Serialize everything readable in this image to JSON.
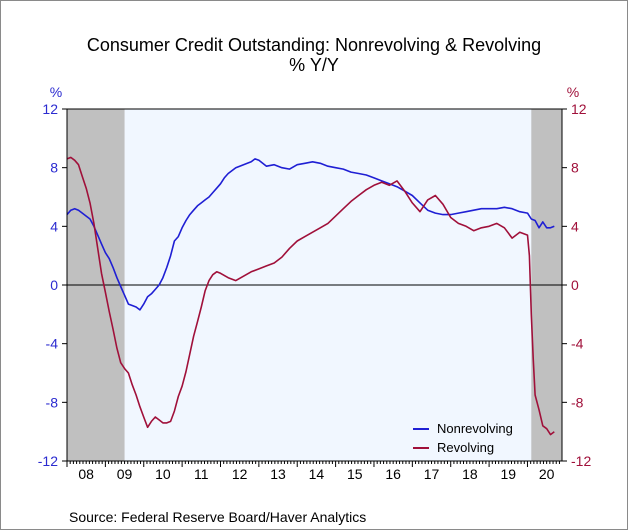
{
  "chart_data": {
    "type": "line",
    "title": "Consumer Credit Outstanding: Nonrevolving & Revolving",
    "subtitle": "% Y/Y",
    "ylabel_left": "%",
    "ylabel_right": "%",
    "ylim": [
      -12,
      12
    ],
    "yticks": [
      -12,
      -8,
      -4,
      0,
      4,
      8,
      12
    ],
    "ytick_labels": [
      "-12",
      "-8",
      "-4",
      "0",
      "4",
      "8",
      "12"
    ],
    "xlim": [
      2008.0,
      2020.9
    ],
    "xtick_labels": [
      "08",
      "09",
      "10",
      "11",
      "12",
      "13",
      "14",
      "15",
      "16",
      "17",
      "18",
      "19",
      "20"
    ],
    "recessions": [
      [
        2008.0,
        2009.5
      ],
      [
        2020.1,
        2020.9
      ]
    ],
    "grid": false,
    "zero_line": true,
    "legend_position": "bottom-right",
    "colors": {
      "nonrevolving": "#1f1fd4",
      "revolving": "#a0103a",
      "left_axis": "#2b2bd0",
      "right_axis": "#a0103a",
      "recession": "#c0c0c0",
      "plot_bg": "#f1f7ff"
    },
    "series": [
      {
        "name": "Nonrevolving",
        "x": [
          2008.0,
          2008.1,
          2008.2,
          2008.3,
          2008.4,
          2008.5,
          2008.6,
          2008.7,
          2008.8,
          2008.9,
          2009.0,
          2009.1,
          2009.2,
          2009.3,
          2009.4,
          2009.5,
          2009.6,
          2009.7,
          2009.8,
          2009.9,
          2010.0,
          2010.1,
          2010.2,
          2010.3,
          2010.4,
          2010.5,
          2010.6,
          2010.7,
          2010.8,
          2010.9,
          2011.0,
          2011.1,
          2011.2,
          2011.3,
          2011.4,
          2011.5,
          2011.6,
          2011.7,
          2011.8,
          2011.9,
          2012.0,
          2012.1,
          2012.2,
          2012.3,
          2012.4,
          2012.5,
          2012.6,
          2012.7,
          2012.8,
          2012.9,
          2013.0,
          2013.2,
          2013.4,
          2013.6,
          2013.8,
          2014.0,
          2014.2,
          2014.4,
          2014.6,
          2014.8,
          2015.0,
          2015.2,
          2015.4,
          2015.6,
          2015.8,
          2016.0,
          2016.2,
          2016.4,
          2016.6,
          2016.8,
          2017.0,
          2017.2,
          2017.4,
          2017.6,
          2017.8,
          2018.0,
          2018.2,
          2018.4,
          2018.6,
          2018.8,
          2019.0,
          2019.2,
          2019.4,
          2019.6,
          2019.8,
          2020.0,
          2020.1,
          2020.2,
          2020.3,
          2020.4,
          2020.5,
          2020.6,
          2020.7
        ],
        "values": [
          4.8,
          5.1,
          5.2,
          5.1,
          4.9,
          4.7,
          4.5,
          4.0,
          3.4,
          2.8,
          2.2,
          1.8,
          1.2,
          0.5,
          -0.1,
          -0.7,
          -1.3,
          -1.4,
          -1.5,
          -1.7,
          -1.3,
          -0.8,
          -0.6,
          -0.3,
          0.0,
          0.5,
          1.2,
          2.0,
          3.0,
          3.3,
          3.9,
          4.4,
          4.8,
          5.1,
          5.4,
          5.6,
          5.8,
          6.0,
          6.3,
          6.6,
          6.9,
          7.3,
          7.6,
          7.8,
          8.0,
          8.1,
          8.2,
          8.3,
          8.4,
          8.6,
          8.5,
          8.1,
          8.2,
          8.0,
          7.9,
          8.2,
          8.3,
          8.4,
          8.3,
          8.1,
          8.0,
          7.9,
          7.7,
          7.6,
          7.5,
          7.3,
          7.1,
          6.9,
          6.7,
          6.4,
          6.1,
          5.6,
          5.1,
          4.9,
          4.8,
          4.8,
          4.9,
          5.0,
          5.1,
          5.2,
          5.2,
          5.2,
          5.3,
          5.2,
          5.0,
          4.9,
          4.5,
          4.4,
          3.9,
          4.3,
          3.9,
          3.9,
          4.0
        ]
      },
      {
        "name": "Revolving",
        "x": [
          2008.0,
          2008.1,
          2008.2,
          2008.3,
          2008.4,
          2008.5,
          2008.6,
          2008.7,
          2008.8,
          2008.9,
          2009.0,
          2009.1,
          2009.2,
          2009.3,
          2009.4,
          2009.5,
          2009.6,
          2009.7,
          2009.8,
          2009.9,
          2010.0,
          2010.1,
          2010.2,
          2010.3,
          2010.4,
          2010.5,
          2010.6,
          2010.7,
          2010.8,
          2010.9,
          2011.0,
          2011.1,
          2011.2,
          2011.3,
          2011.4,
          2011.5,
          2011.6,
          2011.7,
          2011.8,
          2011.9,
          2012.0,
          2012.2,
          2012.4,
          2012.6,
          2012.8,
          2013.0,
          2013.2,
          2013.4,
          2013.6,
          2013.8,
          2014.0,
          2014.2,
          2014.4,
          2014.6,
          2014.8,
          2015.0,
          2015.2,
          2015.4,
          2015.6,
          2015.8,
          2016.0,
          2016.2,
          2016.4,
          2016.6,
          2016.8,
          2017.0,
          2017.2,
          2017.4,
          2017.6,
          2017.8,
          2018.0,
          2018.2,
          2018.4,
          2018.6,
          2018.8,
          2019.0,
          2019.2,
          2019.4,
          2019.6,
          2019.8,
          2020.0,
          2020.05,
          2020.1,
          2020.15,
          2020.2,
          2020.3,
          2020.4,
          2020.5,
          2020.6,
          2020.7
        ],
        "values": [
          8.6,
          8.7,
          8.5,
          8.2,
          7.4,
          6.6,
          5.6,
          4.2,
          2.5,
          0.8,
          -0.5,
          -1.8,
          -3.0,
          -4.3,
          -5.3,
          -5.7,
          -6.0,
          -6.8,
          -7.5,
          -8.3,
          -9.0,
          -9.7,
          -9.3,
          -9.0,
          -9.2,
          -9.4,
          -9.4,
          -9.3,
          -8.6,
          -7.6,
          -6.9,
          -5.9,
          -4.7,
          -3.5,
          -2.5,
          -1.5,
          -0.4,
          0.3,
          0.7,
          0.9,
          0.8,
          0.5,
          0.3,
          0.6,
          0.9,
          1.1,
          1.3,
          1.5,
          1.9,
          2.5,
          3.0,
          3.3,
          3.6,
          3.9,
          4.2,
          4.7,
          5.2,
          5.7,
          6.1,
          6.5,
          6.8,
          7.0,
          6.8,
          7.1,
          6.4,
          5.6,
          5.0,
          5.8,
          6.1,
          5.5,
          4.6,
          4.2,
          4.0,
          3.7,
          3.9,
          4.0,
          4.2,
          3.9,
          3.2,
          3.6,
          3.4,
          2.0,
          -2.0,
          -5.0,
          -7.5,
          -8.5,
          -9.6,
          -9.8,
          -10.2,
          -10.0
        ]
      }
    ],
    "source": "Source:  Federal Reserve Board/Haver Analytics"
  }
}
